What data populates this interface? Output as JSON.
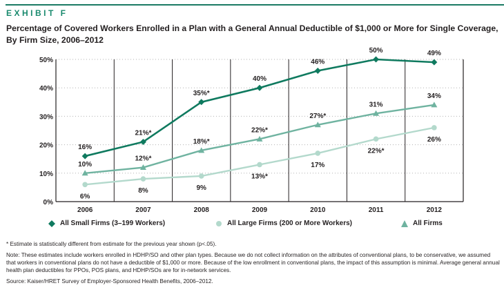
{
  "exhibit_label": "EXHIBIT F",
  "title": "Percentage of Covered Workers Enrolled in a Plan with a General Annual Deductible of $1,000 or More for Single Coverage, By Firm Size, 2006–2012",
  "chart_data": {
    "type": "line",
    "title": "Percentage of Covered Workers Enrolled in a Plan with a General Annual Deductible of $1,000 or More for Single Coverage, By Firm Size, 2006–2012",
    "xlabel": "",
    "ylabel": "",
    "categories": [
      "2006",
      "2007",
      "2008",
      "2009",
      "2010",
      "2011",
      "2012"
    ],
    "ylim": [
      0,
      50
    ],
    "yticks": [
      0,
      10,
      20,
      30,
      40,
      50
    ],
    "ytick_labels": [
      "0%",
      "10%",
      "20%",
      "30%",
      "40%",
      "50%"
    ],
    "grid": "horizontal dotted",
    "legend_position": "bottom",
    "series": [
      {
        "name": "All Small Firms (3–199 Workers)",
        "marker": "diamond",
        "color": "#0f7a5f",
        "values": [
          16,
          21,
          35,
          40,
          46,
          50,
          49
        ],
        "labels": [
          "16%",
          "21%*",
          "35%*",
          "40%",
          "46%",
          "50%",
          "49%"
        ],
        "label_position": "above"
      },
      {
        "name": "All Large Firms (200 or More Workers)",
        "marker": "circle",
        "color": "#b3d9cc",
        "values": [
          6,
          8,
          9,
          13,
          17,
          22,
          26
        ],
        "labels": [
          "6%",
          "8%",
          "9%",
          "13%*",
          "17%",
          "22%*",
          "26%"
        ],
        "label_position": "below"
      },
      {
        "name": "All Firms",
        "marker": "triangle",
        "color": "#6fb3a0",
        "values": [
          10,
          12,
          18,
          22,
          27,
          31,
          34
        ],
        "labels": [
          "10%",
          "12%*",
          "18%*",
          "22%*",
          "27%*",
          "31%",
          "34%"
        ],
        "label_position": "above"
      }
    ]
  },
  "footnotes": {
    "asterisk": "* Estimate is statistically different from estimate for the previous year shown (p<.05).",
    "note": "Note: These estimates include workers enrolled in HDHP/SO and other plan types. Because we do not collect information on the attributes of conventional plans, to be conservative, we assumed that workers in conventional plans do not have a deductible of $1,000 or more. Because of the low enrollment in conventional plans, the impact of this assumption is minimal. Average general annual health plan deductibles for PPOs, POS plans, and HDHP/SOs are for in-network services.",
    "source": "Source: Kaiser/HRET Survey of Employer-Sponsored Health Benefits, 2006–2012."
  }
}
